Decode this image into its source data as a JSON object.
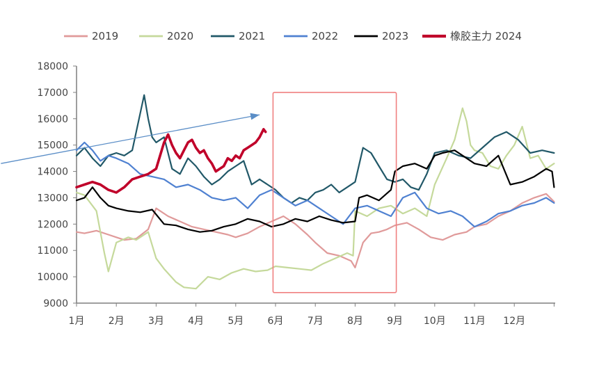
{
  "chart_data": {
    "type": "line",
    "title": "",
    "xlabel": "",
    "ylabel": "",
    "ylim": [
      9000,
      18000
    ],
    "grid": false,
    "legend_position": "top",
    "y_ticks": [
      "18000",
      "17000",
      "16000",
      "15000",
      "14000",
      "13000",
      "12000",
      "11000",
      "10000",
      "9000"
    ],
    "x_ticks": [
      "1月",
      "2月",
      "3月",
      "4月",
      "5月",
      "6月",
      "7月",
      "8月",
      "9月",
      "10月",
      "11月",
      "12月"
    ],
    "x_unit": "month (1.0 = start of Jan, 13.0 = end of Dec)",
    "series": [
      {
        "name": "2019",
        "color": "#e09a9a",
        "width": 2.2,
        "x": [
          1.0,
          1.2,
          1.5,
          1.8,
          2.0,
          2.2,
          2.5,
          2.8,
          3.0,
          3.3,
          3.6,
          3.9,
          4.2,
          4.5,
          4.8,
          5.0,
          5.3,
          5.6,
          5.9,
          6.2,
          6.5,
          6.8,
          7.0,
          7.3,
          7.6,
          7.9,
          8.0,
          8.2,
          8.4,
          8.6,
          8.8,
          9.0,
          9.3,
          9.6,
          9.9,
          10.2,
          10.5,
          10.8,
          11.0,
          11.3,
          11.6,
          11.9,
          12.2,
          12.5,
          12.8,
          13.0
        ],
        "values": [
          11700,
          11650,
          11750,
          11600,
          11500,
          11400,
          11450,
          11800,
          12600,
          12300,
          12100,
          11900,
          11800,
          11700,
          11600,
          11500,
          11650,
          11900,
          12100,
          12300,
          12000,
          11600,
          11300,
          10900,
          10800,
          10600,
          10350,
          11300,
          11650,
          11700,
          11800,
          11950,
          12050,
          11800,
          11500,
          11400,
          11600,
          11700,
          11900,
          12000,
          12300,
          12500,
          12800,
          13000,
          13150,
          12850
        ]
      },
      {
        "name": "2020",
        "color": "#c5d99b",
        "width": 2.2,
        "x": [
          1.0,
          1.2,
          1.5,
          1.7,
          1.8,
          2.0,
          2.3,
          2.5,
          2.8,
          3.0,
          3.2,
          3.5,
          3.7,
          4.0,
          4.3,
          4.6,
          4.9,
          5.2,
          5.5,
          5.8,
          6.0,
          6.3,
          6.6,
          6.9,
          7.2,
          7.5,
          7.8,
          7.95,
          8.0,
          8.3,
          8.6,
          8.9,
          9.2,
          9.5,
          9.8,
          10.0,
          10.3,
          10.5,
          10.7,
          10.8,
          10.9,
          11.0,
          11.2,
          11.4,
          11.6,
          11.8,
          12.0,
          12.2,
          12.4,
          12.6,
          12.8,
          13.0
        ],
        "values": [
          13200,
          13100,
          12500,
          10900,
          10200,
          11300,
          11500,
          11400,
          11700,
          10700,
          10300,
          9800,
          9600,
          9550,
          10000,
          9900,
          10150,
          10300,
          10200,
          10250,
          10400,
          10350,
          10300,
          10250,
          10500,
          10700,
          10900,
          10800,
          12500,
          12300,
          12600,
          12700,
          12400,
          12600,
          12300,
          13500,
          14500,
          15200,
          16400,
          15900,
          15000,
          14800,
          14700,
          14200,
          14100,
          14600,
          15000,
          15700,
          14500,
          14600,
          14100,
          14300
        ]
      },
      {
        "name": "2021",
        "color": "#215868",
        "width": 2.2,
        "x": [
          1.0,
          1.2,
          1.4,
          1.6,
          1.8,
          2.0,
          2.2,
          2.4,
          2.5,
          2.6,
          2.7,
          2.8,
          2.9,
          3.0,
          3.2,
          3.4,
          3.6,
          3.8,
          4.0,
          4.2,
          4.4,
          4.6,
          4.8,
          5.0,
          5.2,
          5.4,
          5.6,
          5.8,
          6.0,
          6.2,
          6.4,
          6.6,
          6.8,
          7.0,
          7.2,
          7.4,
          7.6,
          7.8,
          8.0,
          8.2,
          8.4,
          8.6,
          8.8,
          9.0,
          9.2,
          9.4,
          9.6,
          9.8,
          10.0,
          10.3,
          10.6,
          10.9,
          11.2,
          11.5,
          11.8,
          12.1,
          12.4,
          12.7,
          13.0
        ],
        "values": [
          14600,
          14900,
          14500,
          14200,
          14600,
          14700,
          14600,
          14800,
          15500,
          16200,
          16900,
          16000,
          15300,
          15100,
          15300,
          14100,
          13900,
          14500,
          14200,
          13800,
          13500,
          13700,
          14000,
          14200,
          14400,
          13500,
          13700,
          13500,
          13300,
          13000,
          12800,
          13000,
          12900,
          13200,
          13300,
          13500,
          13200,
          13400,
          13600,
          14900,
          14700,
          14200,
          13700,
          13600,
          13700,
          13400,
          13300,
          13900,
          14700,
          14800,
          14600,
          14500,
          14900,
          15300,
          15500,
          15200,
          14700,
          14800,
          14700
        ]
      },
      {
        "name": "2022",
        "color": "#4f81d1",
        "width": 2.2,
        "x": [
          1.0,
          1.2,
          1.4,
          1.6,
          1.8,
          2.0,
          2.3,
          2.6,
          2.9,
          3.2,
          3.5,
          3.8,
          4.1,
          4.4,
          4.7,
          5.0,
          5.3,
          5.6,
          5.9,
          6.2,
          6.5,
          6.8,
          7.1,
          7.4,
          7.7,
          8.0,
          8.3,
          8.6,
          8.9,
          9.2,
          9.5,
          9.8,
          10.1,
          10.4,
          10.7,
          11.0,
          11.3,
          11.6,
          11.9,
          12.2,
          12.5,
          12.8,
          13.0
        ],
        "values": [
          14800,
          15100,
          14800,
          14400,
          14600,
          14500,
          14300,
          13900,
          13800,
          13700,
          13400,
          13500,
          13300,
          13000,
          12900,
          13000,
          12600,
          13100,
          13300,
          13000,
          12700,
          12900,
          12600,
          12300,
          12000,
          12600,
          12700,
          12500,
          12300,
          13000,
          13200,
          12600,
          12400,
          12500,
          12300,
          11900,
          12100,
          12400,
          12500,
          12700,
          12800,
          13000,
          12800
        ]
      },
      {
        "name": "2023",
        "color": "#000000",
        "width": 2.2,
        "x": [
          1.0,
          1.2,
          1.4,
          1.6,
          1.8,
          2.0,
          2.3,
          2.6,
          2.9,
          3.2,
          3.5,
          3.8,
          4.1,
          4.4,
          4.7,
          5.0,
          5.3,
          5.6,
          5.9,
          6.2,
          6.5,
          6.8,
          7.1,
          7.4,
          7.7,
          8.0,
          8.1,
          8.3,
          8.6,
          8.9,
          9.0,
          9.2,
          9.5,
          9.8,
          10.0,
          10.2,
          10.5,
          10.8,
          11.0,
          11.3,
          11.6,
          11.9,
          12.2,
          12.5,
          12.8,
          12.95,
          13.0
        ],
        "values": [
          12900,
          13000,
          13400,
          13000,
          12700,
          12600,
          12500,
          12450,
          12550,
          12000,
          11950,
          11800,
          11700,
          11750,
          11900,
          12000,
          12200,
          12100,
          11900,
          12000,
          12200,
          12100,
          12300,
          12150,
          12050,
          12100,
          13000,
          13100,
          12900,
          13300,
          14000,
          14200,
          14300,
          14100,
          14600,
          14700,
          14800,
          14500,
          14300,
          14200,
          14600,
          13500,
          13600,
          13800,
          14100,
          14000,
          13400
        ]
      },
      {
        "name": "橡胶主力 2024",
        "color": "#c0002a",
        "width": 3.6,
        "x": [
          1.0,
          1.2,
          1.4,
          1.6,
          1.8,
          2.0,
          2.2,
          2.4,
          2.6,
          2.8,
          3.0,
          3.1,
          3.2,
          3.3,
          3.4,
          3.5,
          3.6,
          3.7,
          3.8,
          3.9,
          4.0,
          4.1,
          4.2,
          4.3,
          4.4,
          4.5,
          4.6,
          4.7,
          4.8,
          4.9,
          5.0,
          5.1,
          5.2,
          5.3,
          5.4,
          5.5,
          5.6,
          5.7,
          5.75
        ],
        "values": [
          13400,
          13500,
          13600,
          13500,
          13300,
          13200,
          13400,
          13700,
          13800,
          13900,
          14100,
          14600,
          15100,
          15400,
          15000,
          14700,
          14500,
          14800,
          15100,
          15200,
          14900,
          14700,
          14800,
          14500,
          14300,
          14000,
          14100,
          14200,
          14500,
          14400,
          14600,
          14500,
          14800,
          14900,
          15000,
          15100,
          15300,
          15600,
          15500
        ]
      }
    ],
    "annotations": {
      "highlight_box": {
        "x_from": 5.85,
        "x_to": 9.0,
        "y_from": 9400,
        "y_to": 17000,
        "color": "#f08080"
      },
      "arrow": {
        "from_x": -0.9,
        "from_y": 14300,
        "to_x": 5.6,
        "to_y": 16150,
        "color": "#5b8ec7"
      }
    }
  }
}
